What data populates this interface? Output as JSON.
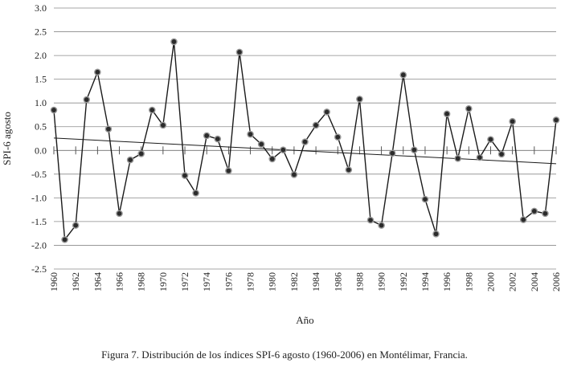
{
  "chart_data": {
    "type": "line",
    "title": "",
    "xlabel": "Año",
    "ylabel": "SPI-6 agosto",
    "xlim": [
      1960,
      2006
    ],
    "ylim": [
      -2.5,
      3.0
    ],
    "y_ticks": [
      3.0,
      2.5,
      2.0,
      1.5,
      1.0,
      0.5,
      0.0,
      -0.5,
      -1.0,
      -1.5,
      -2.0,
      -2.5
    ],
    "y_tick_labels": [
      "3.0",
      "2.5",
      "2.0",
      "1.5",
      "1.0",
      "0.5",
      "0.0",
      "-0.5",
      "-1.0",
      "-1.5",
      "-2.0",
      "-2.5"
    ],
    "x_ticks": [
      1960,
      1962,
      1964,
      1966,
      1968,
      1970,
      1972,
      1974,
      1976,
      1978,
      1980,
      1982,
      1984,
      1986,
      1988,
      1990,
      1992,
      1994,
      1996,
      1998,
      2000,
      2002,
      2004,
      2006
    ],
    "x_tick_labels": [
      "1960",
      "1962",
      "1964",
      "1966",
      "1968",
      "1970",
      "1972",
      "1974",
      "1976",
      "1978",
      "1980",
      "1982",
      "1984",
      "1986",
      "1988",
      "1990",
      "1992",
      "1994",
      "1996",
      "1998",
      "2000",
      "2002",
      "2004",
      "2006"
    ],
    "grid": "horizontal",
    "series": [
      {
        "x": [
          1960,
          1961,
          1962,
          1963,
          1964,
          1965,
          1966,
          1967,
          1968,
          1969,
          1970,
          1971,
          1972,
          1973,
          1974,
          1975,
          1976,
          1977,
          1978,
          1979,
          1980,
          1981,
          1982,
          1983,
          1984,
          1985,
          1986,
          1987,
          1988,
          1989,
          1990,
          1991,
          1992,
          1993,
          1994,
          1995,
          1996,
          1997,
          1998,
          1999,
          2000,
          2001,
          2002,
          2003,
          2004,
          2005,
          2006
        ],
        "values": [
          0.85,
          -1.88,
          -1.58,
          1.07,
          1.65,
          0.45,
          -1.33,
          -0.2,
          -0.07,
          0.85,
          0.53,
          2.29,
          -0.53,
          -0.9,
          0.31,
          0.24,
          -0.43,
          2.07,
          0.34,
          0.13,
          -0.18,
          0.01,
          -0.51,
          0.18,
          0.53,
          0.81,
          0.28,
          -0.41,
          1.08,
          -1.47,
          -1.58,
          -0.06,
          1.59,
          0.01,
          -1.03,
          -1.76,
          0.77,
          -0.17,
          0.88,
          -0.15,
          0.23,
          -0.08,
          0.61,
          -1.46,
          -1.28,
          -1.33,
          0.64
        ],
        "color": "#1a1a1a"
      }
    ],
    "trendline": {
      "x": [
        1960,
        2006
      ],
      "values": [
        0.26,
        -0.28
      ],
      "color": "#1a1a1a"
    }
  },
  "caption": "Figura 7. Distribución de los índices SPI-6 agosto (1960-2006) en Montélimar, Francia."
}
